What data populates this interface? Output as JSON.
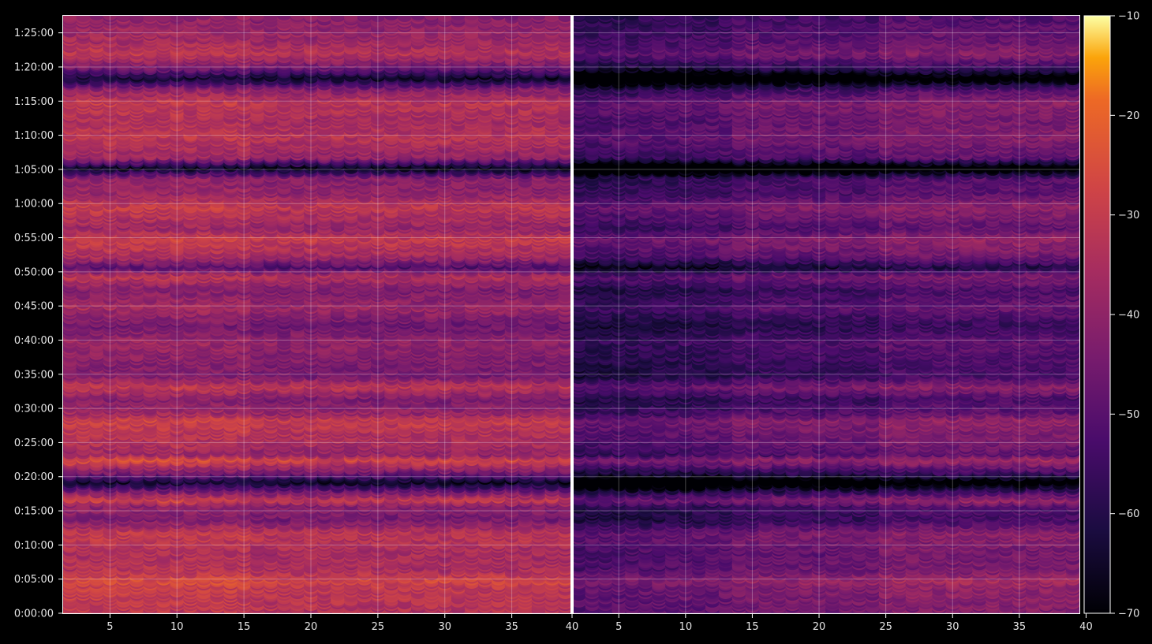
{
  "chart_data": {
    "type": "heatmap",
    "colormap": "inferno",
    "background": "#000000",
    "grid": true,
    "panels": [
      {
        "name": "",
        "x_range": [
          1.5,
          39.5
        ],
        "x_ticks": [
          "5",
          "10",
          "15",
          "20",
          "25",
          "30",
          "35"
        ]
      },
      {
        "name": "",
        "x_range": [
          1.5,
          39.5
        ],
        "x_ticks": [
          "5",
          "10",
          "15",
          "20",
          "25",
          "30",
          "35",
          "40"
        ]
      }
    ],
    "panel_divider_tick": "40",
    "y_range_seconds": [
      0,
      5250
    ],
    "y_ticks": [
      "0:00:00",
      "0:05:00",
      "0:10:00",
      "0:15:00",
      "0:20:00",
      "0:25:00",
      "0:30:00",
      "0:35:00",
      "0:40:00",
      "0:45:00",
      "0:50:00",
      "0:55:00",
      "1:00:00",
      "1:05:00",
      "1:10:00",
      "1:15:00",
      "1:20:00",
      "1:25:00"
    ],
    "colorbar": {
      "min": -70,
      "max": -10,
      "ticks": [
        "−70",
        "−60",
        "−50",
        "−40",
        "−30",
        "−20",
        "−10"
      ]
    },
    "row_intensity_profile": [
      {
        "t": 0,
        "v": -34
      },
      {
        "t": 250,
        "v": -31
      },
      {
        "t": 300,
        "v": -27
      },
      {
        "t": 400,
        "v": -35
      },
      {
        "t": 540,
        "v": -36
      },
      {
        "t": 720,
        "v": -32
      },
      {
        "t": 840,
        "v": -45
      },
      {
        "t": 960,
        "v": -42
      },
      {
        "t": 1010,
        "v": -30
      },
      {
        "t": 1080,
        "v": -44
      },
      {
        "t": 1170,
        "v": -66
      },
      {
        "t": 1240,
        "v": -48
      },
      {
        "t": 1370,
        "v": -27
      },
      {
        "t": 1410,
        "v": -40
      },
      {
        "t": 1500,
        "v": -36
      },
      {
        "t": 1590,
        "v": -34
      },
      {
        "t": 1720,
        "v": -30
      },
      {
        "t": 1760,
        "v": -38
      },
      {
        "t": 1800,
        "v": -40
      },
      {
        "t": 1900,
        "v": -44
      },
      {
        "t": 2010,
        "v": -32
      },
      {
        "t": 2100,
        "v": -45
      },
      {
        "t": 2250,
        "v": -43
      },
      {
        "t": 2400,
        "v": -40
      },
      {
        "t": 2550,
        "v": -47
      },
      {
        "t": 2700,
        "v": -38
      },
      {
        "t": 2860,
        "v": -44
      },
      {
        "t": 2980,
        "v": -34
      },
      {
        "t": 3060,
        "v": -52
      },
      {
        "t": 3150,
        "v": -37
      },
      {
        "t": 3310,
        "v": -30
      },
      {
        "t": 3400,
        "v": -40
      },
      {
        "t": 3590,
        "v": -31
      },
      {
        "t": 3700,
        "v": -40
      },
      {
        "t": 3840,
        "v": -42
      },
      {
        "t": 3930,
        "v": -68
      },
      {
        "t": 4020,
        "v": -40
      },
      {
        "t": 4200,
        "v": -33
      },
      {
        "t": 4350,
        "v": -36
      },
      {
        "t": 4500,
        "v": -32
      },
      {
        "t": 4620,
        "v": -42
      },
      {
        "t": 4720,
        "v": -66
      },
      {
        "t": 4800,
        "v": -48
      },
      {
        "t": 4930,
        "v": -33
      },
      {
        "t": 5050,
        "v": -38
      },
      {
        "t": 5160,
        "v": -40
      },
      {
        "t": 5250,
        "v": -42
      }
    ],
    "panel_offsets": [
      0,
      -12
    ]
  }
}
